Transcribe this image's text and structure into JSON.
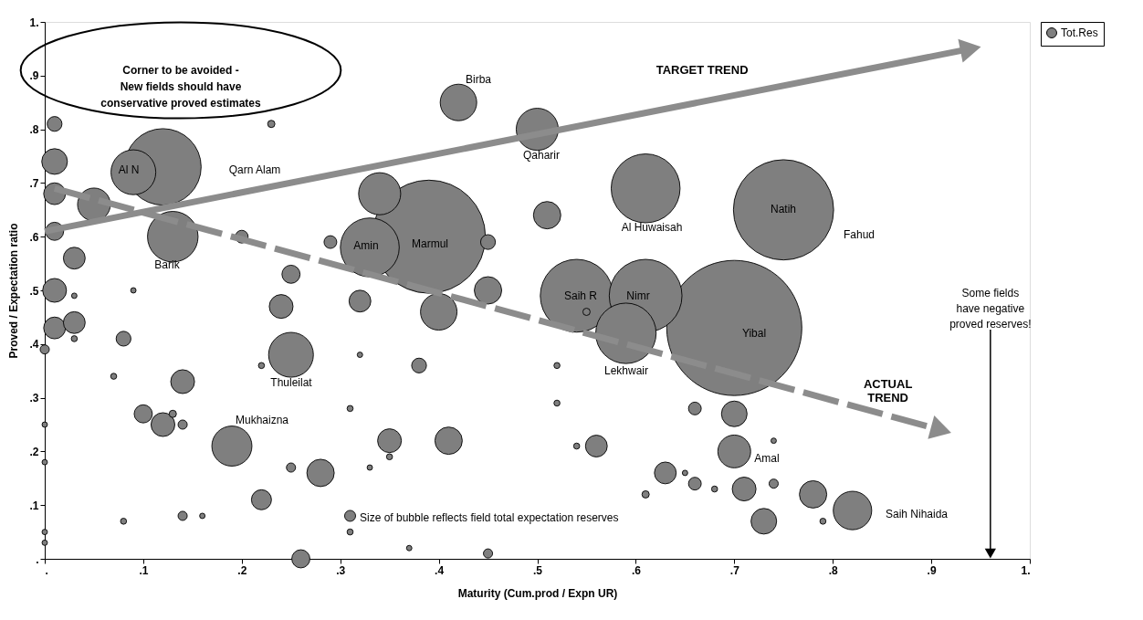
{
  "chart_data": {
    "type": "bubble",
    "xlabel": "Maturity (Cum.prod / Expn UR)",
    "ylabel": "Proved / Expectation ratio",
    "xlim": [
      0,
      1
    ],
    "ylim": [
      0,
      1
    ],
    "xticks": [
      {
        "value": 0,
        "label": "."
      },
      {
        "value": 0.1,
        "label": ".1"
      },
      {
        "value": 0.2,
        "label": ".2"
      },
      {
        "value": 0.3,
        "label": ".3"
      },
      {
        "value": 0.4,
        "label": ".4"
      },
      {
        "value": 0.5,
        "label": ".5"
      },
      {
        "value": 0.6,
        "label": ".6"
      },
      {
        "value": 0.7,
        "label": ".7"
      },
      {
        "value": 0.8,
        "label": ".8"
      },
      {
        "value": 0.9,
        "label": ".9"
      },
      {
        "value": 1,
        "label": "1."
      }
    ],
    "yticks": [
      {
        "value": 0,
        "label": "."
      },
      {
        "value": 0.1,
        "label": ".1"
      },
      {
        "value": 0.2,
        "label": ".2"
      },
      {
        "value": 0.3,
        "label": ".3"
      },
      {
        "value": 0.4,
        "label": ".4"
      },
      {
        "value": 0.5,
        "label": ".5"
      },
      {
        "value": 0.6,
        "label": ".6"
      },
      {
        "value": 0.7,
        "label": ".7"
      },
      {
        "value": 0.8,
        "label": ".8"
      },
      {
        "value": 0.9,
        "label": ".9"
      },
      {
        "value": 1,
        "label": "1."
      }
    ],
    "legend": "right",
    "series": [
      {
        "name": "Tot.Res",
        "color": "#7f7f7f",
        "marker": "circle",
        "x": [
          0.7,
          0.39,
          0.75,
          0.12,
          0.54,
          0.61,
          0.61,
          0.59,
          0.33,
          0.13,
          0.09,
          0.25,
          0.5,
          0.34,
          0.19,
          0.82,
          0.42,
          0.4,
          0.05,
          0.7,
          0.51,
          0.45,
          0.28,
          0.41,
          0.78,
          0.01,
          0.7,
          0.73,
          0.01,
          0.24,
          0.14,
          0.12,
          0.35,
          0.71,
          0.01,
          0.01,
          0.03,
          0.03,
          0.32,
          0.56,
          0.63,
          0.22,
          0.01,
          0.25,
          0.1,
          0.26,
          0.01,
          0.08,
          0.45,
          0.38,
          0.2,
          0.29,
          0.66,
          0.66,
          0.31,
          0.0,
          0.14,
          0.25,
          0.14,
          0.45,
          0.74,
          0.23,
          0.55,
          0.13,
          0.61,
          0.03,
          0.09,
          0.32,
          0.16,
          0.33,
          0.0,
          0.0,
          0.0,
          0.0,
          0.65,
          0.37,
          0.74,
          0.03,
          0.07,
          0.22,
          0.52,
          0.08,
          0.31,
          0.31,
          0.35,
          0.52,
          0.54,
          0.68,
          0.79
        ],
        "values": [
          0.43,
          0.6,
          0.65,
          0.73,
          0.49,
          0.49,
          0.69,
          0.42,
          0.58,
          0.6,
          0.72,
          0.38,
          0.8,
          0.68,
          0.21,
          0.09,
          0.85,
          0.46,
          0.66,
          0.2,
          0.64,
          0.5,
          0.16,
          0.22,
          0.12,
          0.74,
          0.27,
          0.07,
          0.5,
          0.47,
          0.33,
          0.25,
          0.22,
          0.13,
          0.68,
          0.43,
          0.56,
          0.44,
          0.48,
          0.21,
          0.16,
          0.11,
          0.61,
          0.53,
          0.27,
          0.0,
          0.81,
          0.41,
          0.59,
          0.36,
          0.6,
          0.59,
          0.28,
          0.14,
          0.08,
          0.39,
          0.25,
          0.17,
          0.08,
          0.01,
          0.14,
          0.81,
          0.46,
          0.27,
          0.12,
          0.49,
          0.5,
          0.38,
          0.08,
          0.17,
          0.25,
          0.18,
          0.05,
          0.03,
          0.16,
          0.02,
          0.22,
          0.41,
          0.34,
          0.36,
          0.36,
          0.07,
          0.28,
          0.05,
          0.19,
          0.29,
          0.21,
          0.13,
          0.07
        ],
        "sizes": [
          1,
          0.7,
          0.55,
          0.32,
          0.29,
          0.29,
          0.26,
          0.2,
          0.19,
          0.14,
          0.11,
          0.11,
          0.097,
          0.097,
          0.088,
          0.081,
          0.073,
          0.073,
          0.059,
          0.059,
          0.041,
          0.041,
          0.041,
          0.041,
          0.041,
          0.036,
          0.036,
          0.036,
          0.031,
          0.031,
          0.031,
          0.031,
          0.031,
          0.031,
          0.026,
          0.026,
          0.026,
          0.026,
          0.026,
          0.026,
          0.026,
          0.022,
          0.018,
          0.018,
          0.018,
          0.018,
          0.012,
          0.012,
          0.012,
          0.012,
          0.0089,
          0.0089,
          0.0089,
          0.0089,
          0.0066,
          0.0046,
          0.0046,
          0.0046,
          0.0046,
          0.0046,
          0.0046,
          0.0029,
          0.0029,
          0.0029,
          0.0029,
          0.0016,
          0.0016,
          0.0016,
          0.0016,
          0.0016,
          0.0016,
          0.0016,
          0.0016,
          0.0016,
          0.0016,
          0.0016,
          0.0016,
          0.002,
          0.002,
          0.002,
          0.002,
          0.002,
          0.002,
          0.002,
          0.002,
          0.002,
          0.002,
          0.002,
          0.002
        ]
      },
      {
        "name": "TARGET TREND",
        "type": "line",
        "color": "#8c8c8c",
        "line_style": "solid",
        "marker": "triangle",
        "x": [
          0,
          0.94
        ],
        "values": [
          0.61,
          0.95
        ]
      },
      {
        "name": "ACTUAL\nTREND",
        "type": "line",
        "color": "#8c8c8c",
        "line_style": "dashed",
        "marker": "triangle",
        "x": [
          0.01,
          0.91
        ],
        "values": [
          0.69,
          0.24
        ]
      }
    ],
    "annotations": [
      "Corner to be avoided -\nNew fields should have\nconservative proved estimates",
      {
        "text": "Some fields\nhave negative\nproved reserves!",
        "x": 0.96,
        "y": 0.01
      },
      "Size of bubble reflects field total expectation reserves",
      "Qarn Alam",
      "Barik",
      "Birba",
      "Qaharir",
      "Al Huwaisah",
      "Fahud",
      "Lekhwair",
      "Thuleilat",
      "Mukhaizna",
      "Amal",
      "Saih Nihaida",
      "Al N",
      "Amin",
      "Marmul",
      "Saih R",
      "Nimr",
      "Natih",
      "Yibal"
    ]
  }
}
